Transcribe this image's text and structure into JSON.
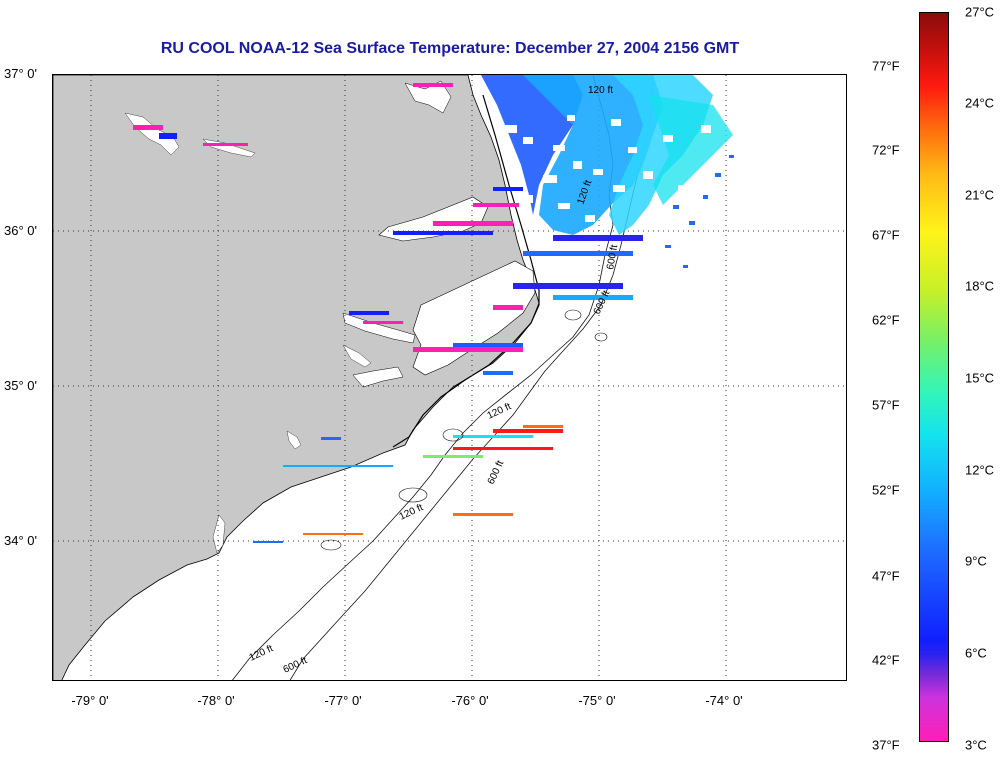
{
  "title": "RU COOL  NOAA-12  Sea Surface Temperature:  December 27, 2004 2156 GMT",
  "lat_labels": [
    "37° 0'",
    "36° 0'",
    "35° 0'",
    "34° 0'"
  ],
  "lon_labels": [
    "-79° 0'",
    "-78° 0'",
    "-77° 0'",
    "-76° 0'",
    "-75° 0'",
    "-74° 0'"
  ],
  "colorbar": {
    "fahrenheit_labels": [
      "77°F",
      "72°F",
      "67°F",
      "62°F",
      "57°F",
      "52°F",
      "47°F",
      "42°F",
      "37°F"
    ],
    "celsius_labels": [
      "27°C",
      "24°C",
      "21°C",
      "18°C",
      "15°C",
      "12°C",
      "9°C",
      "6°C",
      "3°C"
    ],
    "colors": {
      "min": "#ff1fb5",
      "purple": "#7a2bd8",
      "blue": "#1020ff",
      "cyan": "#14e2ee",
      "green": "#77f067",
      "yellow": "#fff31a",
      "orange": "#ff6e0e",
      "red": "#ff1a10",
      "max": "#8a0c0a"
    }
  },
  "contour_labels": [
    "120 ft",
    "600 ft",
    "120 ft",
    "600 ft",
    "120 ft",
    "120 ft",
    "600 ft",
    "120 ft",
    "600 ft"
  ],
  "land_color": "#c8c8c8"
}
